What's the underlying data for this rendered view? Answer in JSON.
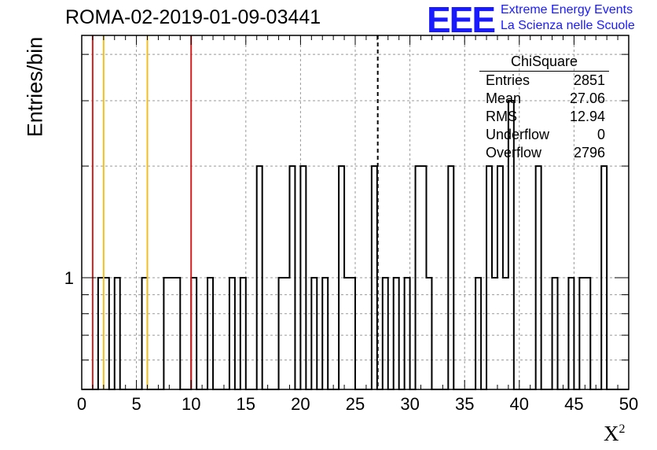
{
  "header": {
    "title": "ROMA-02-2019-01-09-03441",
    "logo_text": "EEE",
    "logo_line1": "Extreme Energy Events",
    "logo_line2": "La Scienza nelle Scuole"
  },
  "stats": {
    "name": "ChiSquare",
    "rows": [
      {
        "label": "Entries",
        "value": "2851"
      },
      {
        "label": "Mean",
        "value": "27.06"
      },
      {
        "label": "RMS",
        "value": "12.94"
      },
      {
        "label": "Underflow",
        "value": "0"
      },
      {
        "label": "Overflow",
        "value": "2796"
      }
    ]
  },
  "colors": {
    "red_line": "#d42020",
    "yellow_line": "#f0c020",
    "hist": "#000000",
    "grid": "#999999"
  },
  "chart_data": {
    "type": "bar",
    "title": "ROMA-02-2019-01-09-03441",
    "xlabel": "X",
    "xlabel_sup": "2",
    "ylabel": "Entries/bin",
    "xlim": [
      0,
      50
    ],
    "ylog": true,
    "ylim": [
      0.5,
      4.5
    ],
    "xticks": [
      "0",
      "5",
      "10",
      "15",
      "20",
      "25",
      "30",
      "35",
      "40",
      "45",
      "50"
    ],
    "yticks": [
      "1"
    ],
    "bin_width": 0.5,
    "bins": [
      {
        "x0": 1.5,
        "count": 1
      },
      {
        "x0": 2.0,
        "count": 1
      },
      {
        "x0": 3.0,
        "count": 1
      },
      {
        "x0": 5.5,
        "count": 1
      },
      {
        "x0": 7.5,
        "count": 1
      },
      {
        "x0": 8.0,
        "count": 1
      },
      {
        "x0": 8.5,
        "count": 1
      },
      {
        "x0": 10.0,
        "count": 1
      },
      {
        "x0": 11.5,
        "count": 1
      },
      {
        "x0": 13.5,
        "count": 1
      },
      {
        "x0": 14.5,
        "count": 1
      },
      {
        "x0": 16.0,
        "count": 2
      },
      {
        "x0": 18.0,
        "count": 1
      },
      {
        "x0": 18.5,
        "count": 1
      },
      {
        "x0": 19.0,
        "count": 2
      },
      {
        "x0": 20.0,
        "count": 2
      },
      {
        "x0": 21.0,
        "count": 1
      },
      {
        "x0": 22.0,
        "count": 1
      },
      {
        "x0": 23.5,
        "count": 2
      },
      {
        "x0": 24.0,
        "count": 1
      },
      {
        "x0": 24.5,
        "count": 1
      },
      {
        "x0": 26.5,
        "count": 2
      },
      {
        "x0": 27.5,
        "count": 1
      },
      {
        "x0": 28.5,
        "count": 1
      },
      {
        "x0": 29.5,
        "count": 1
      },
      {
        "x0": 30.5,
        "count": 2
      },
      {
        "x0": 31.0,
        "count": 2
      },
      {
        "x0": 31.5,
        "count": 1
      },
      {
        "x0": 33.5,
        "count": 2
      },
      {
        "x0": 36.0,
        "count": 1
      },
      {
        "x0": 37.0,
        "count": 2
      },
      {
        "x0": 37.5,
        "count": 1
      },
      {
        "x0": 38.0,
        "count": 2
      },
      {
        "x0": 38.5,
        "count": 1
      },
      {
        "x0": 39.0,
        "count": 3
      },
      {
        "x0": 41.5,
        "count": 2
      },
      {
        "x0": 43.0,
        "count": 1
      },
      {
        "x0": 44.5,
        "count": 1
      },
      {
        "x0": 45.5,
        "count": 1
      },
      {
        "x0": 46.0,
        "count": 1
      },
      {
        "x0": 47.5,
        "count": 2
      }
    ],
    "vertical_lines": [
      {
        "x": 1.0,
        "color": "red"
      },
      {
        "x": 2.0,
        "color": "yellow"
      },
      {
        "x": 6.0,
        "color": "yellow"
      },
      {
        "x": 10.0,
        "color": "red"
      },
      {
        "x": 27.06,
        "color": "black",
        "style": "dashed"
      }
    ]
  }
}
